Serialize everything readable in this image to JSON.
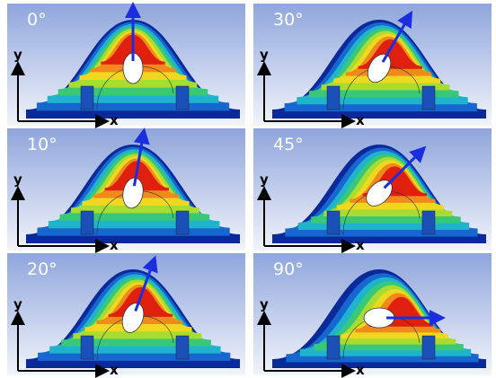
{
  "panels": [
    {
      "angle_label": "0°",
      "y_label": "y",
      "x_label": "x"
    },
    {
      "angle_label": "30°",
      "y_label": "y",
      "x_label": "x"
    },
    {
      "angle_label": "10°",
      "y_label": "y",
      "x_label": "x"
    },
    {
      "angle_label": "45°",
      "y_label": "y",
      "x_label": "x"
    },
    {
      "angle_label": "20°",
      "y_label": "y",
      "x_label": "x"
    },
    {
      "angle_label": "90°",
      "y_label": "y",
      "x_label": "x"
    }
  ]
}
